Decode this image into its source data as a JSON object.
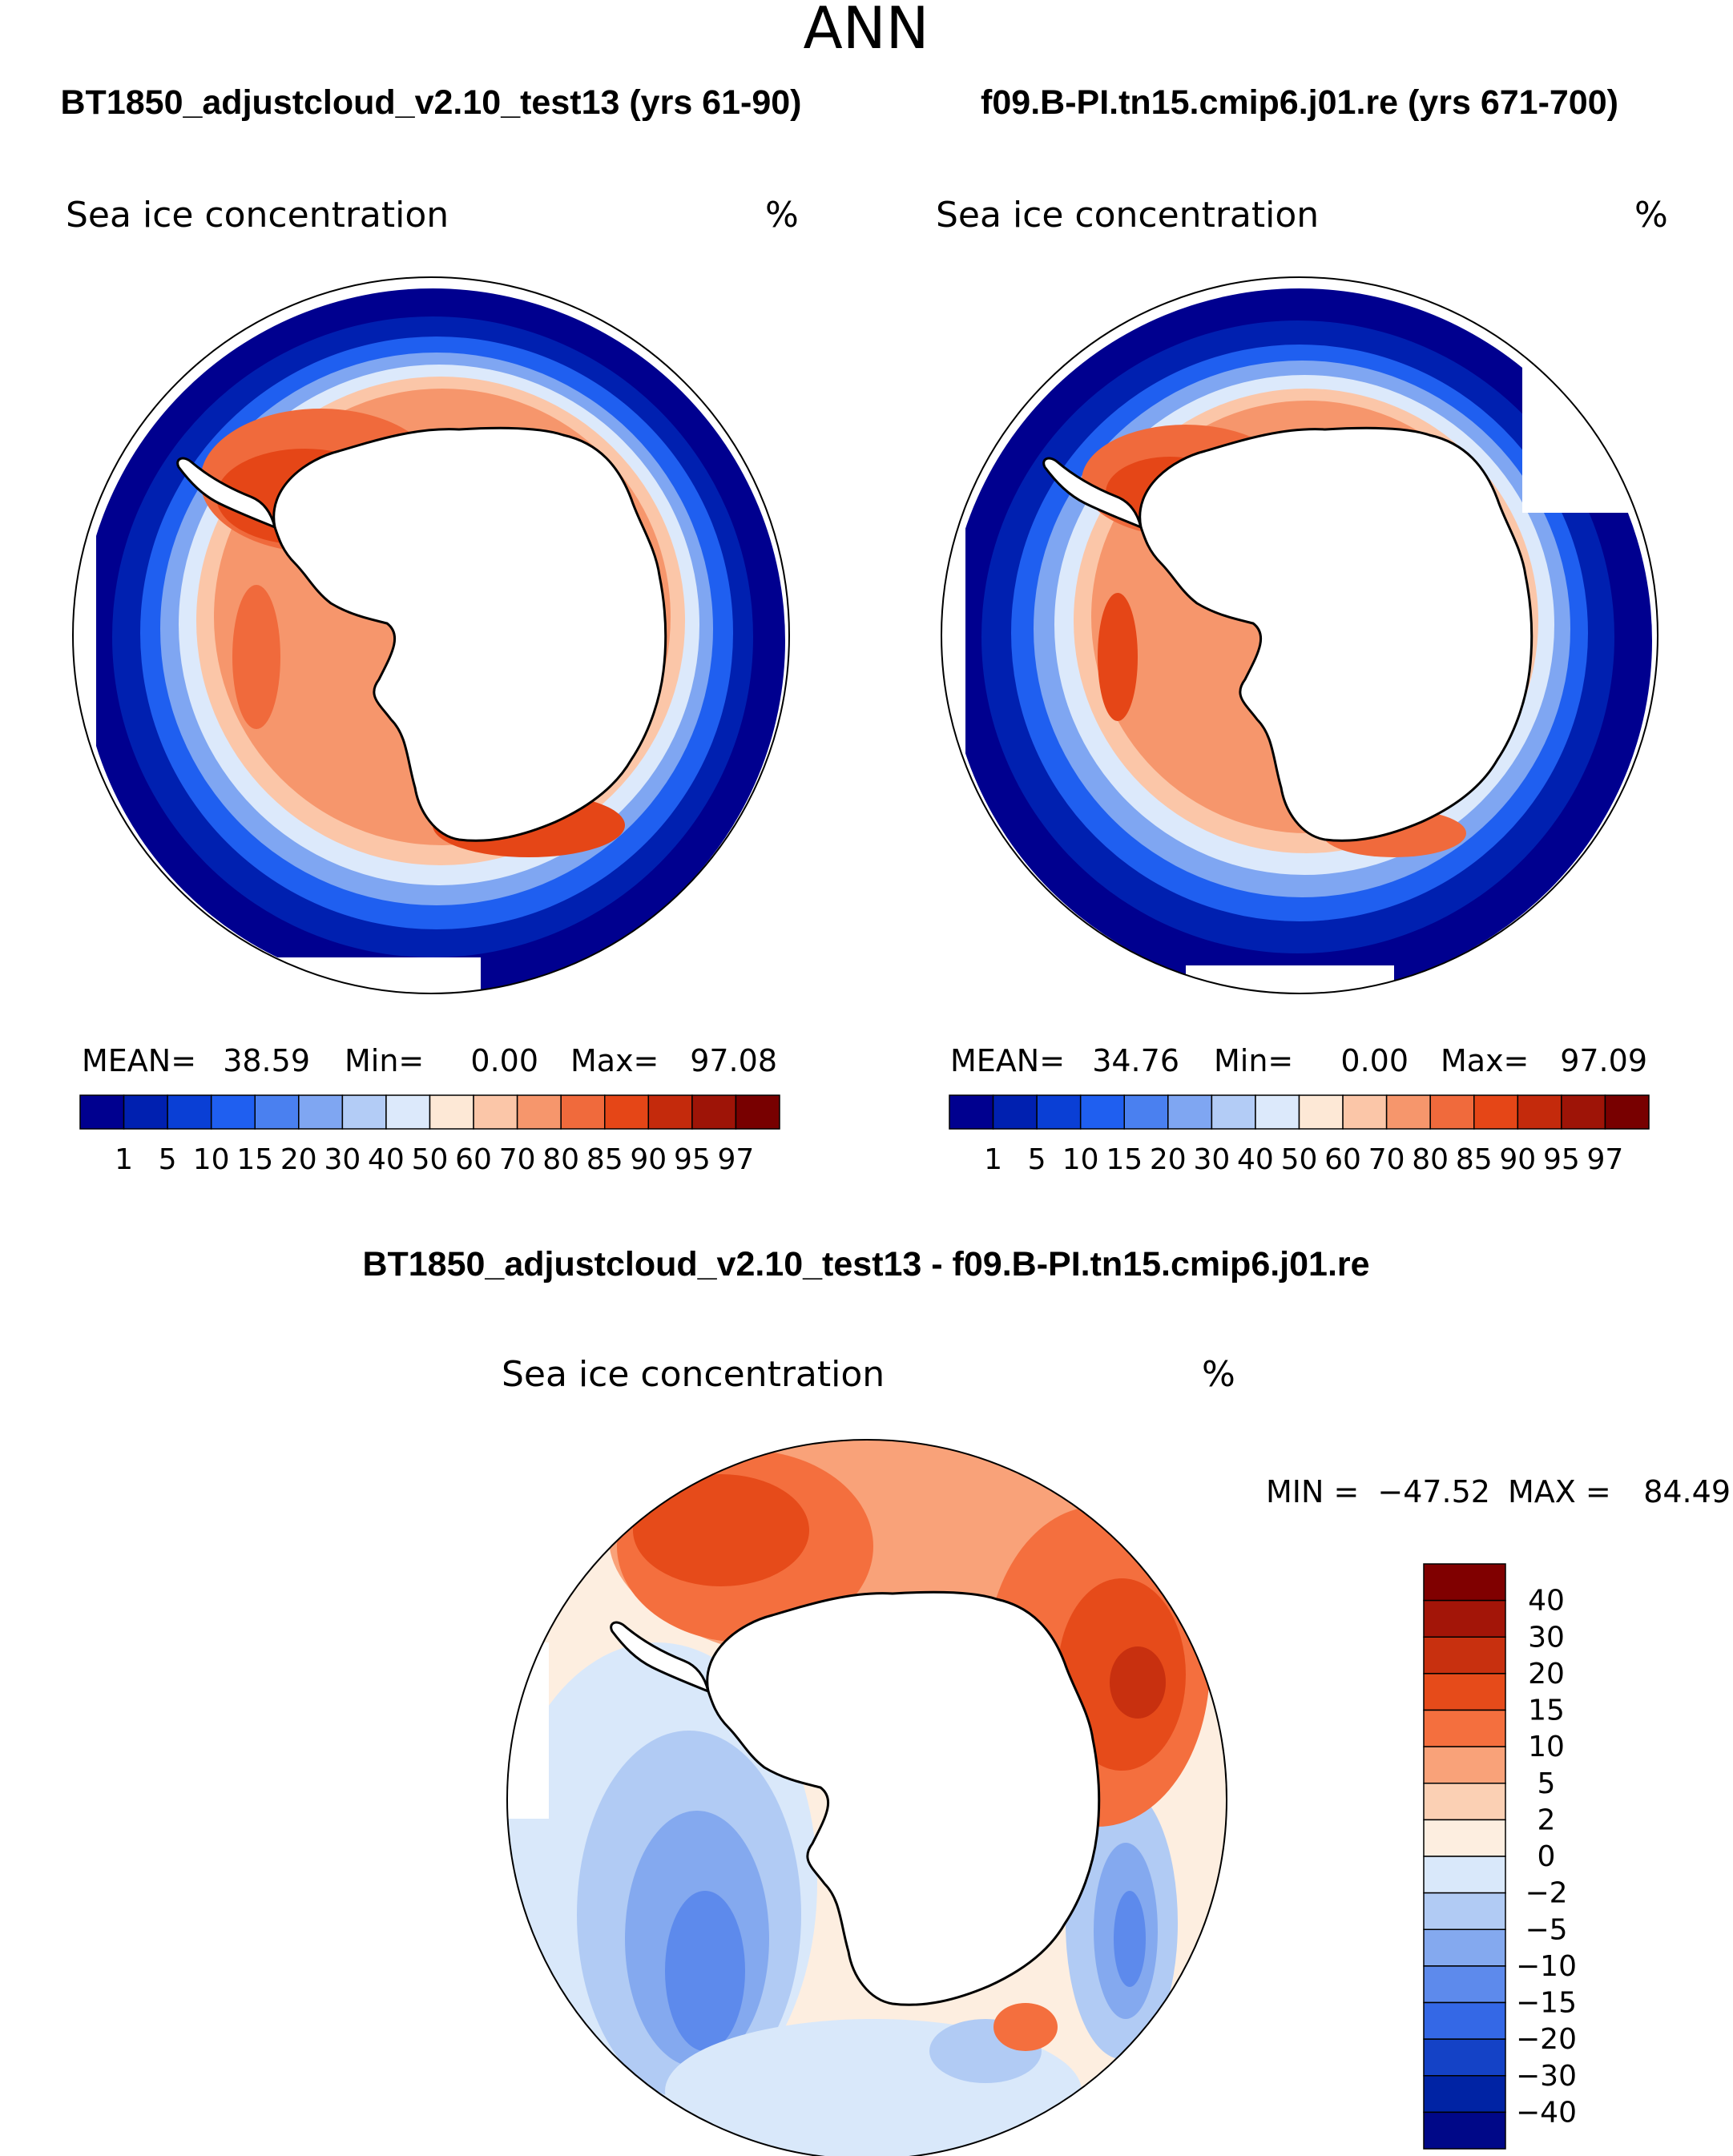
{
  "chart_data": {
    "type": "heatmap",
    "title": "ANN",
    "variable": "Sea ice concentration",
    "units": "%",
    "panels": [
      {
        "id": "case",
        "title": "BT1850_adjustcloud_v2.10_test13 (yrs 61-90)",
        "stats": {
          "mean_label": "MEAN=",
          "mean": "38.59",
          "min_label": "Min=",
          "min": "0.00",
          "max_label": "Max=",
          "max": "97.08"
        }
      },
      {
        "id": "control",
        "title": "f09.B-PI.tn15.cmip6.j01.re (yrs 671-700)",
        "stats": {
          "mean_label": "MEAN=",
          "mean": "34.76",
          "min_label": "Min=",
          "min": "0.00",
          "max_label": "Max=",
          "max": "97.09"
        }
      },
      {
        "id": "diff",
        "title": "BT1850_adjustcloud_v2.10_test13 - f09.B-PI.tn15.cmip6.j01.re",
        "stats": {
          "min_label": "MIN =",
          "min": "−47.52",
          "max_label": "MAX =",
          "max": "84.49"
        }
      }
    ],
    "abs_colorbar": {
      "ticks": [
        "1",
        "5",
        "10",
        "15",
        "20",
        "30",
        "40",
        "50",
        "60",
        "70",
        "80",
        "85",
        "90",
        "95",
        "97"
      ],
      "colors": [
        "#00008f",
        "#0020b0",
        "#0a3fd5",
        "#1f5ff0",
        "#4a80f0",
        "#7fa6f2",
        "#b3ccf6",
        "#dce9fb",
        "#fde8d6",
        "#fbc6a8",
        "#f6966c",
        "#f06a3c",
        "#e54617",
        "#c42a0c",
        "#9e1407",
        "#780000"
      ]
    },
    "diff_colorbar": {
      "ticks": [
        "40",
        "30",
        "20",
        "15",
        "10",
        "5",
        "2",
        "0",
        "−2",
        "−5",
        "−10",
        "−15",
        "−20",
        "−30",
        "−40"
      ],
      "colors": [
        "#800000",
        "#a31508",
        "#c8300f",
        "#e64b1a",
        "#f46f3e",
        "#f9a279",
        "#fbd0b4",
        "#fdeee0",
        "#d9e8fa",
        "#b1cbf4",
        "#84a9ef",
        "#5d8aec",
        "#3468e6",
        "#1442c6",
        "#0023a4",
        "#000888"
      ]
    }
  }
}
